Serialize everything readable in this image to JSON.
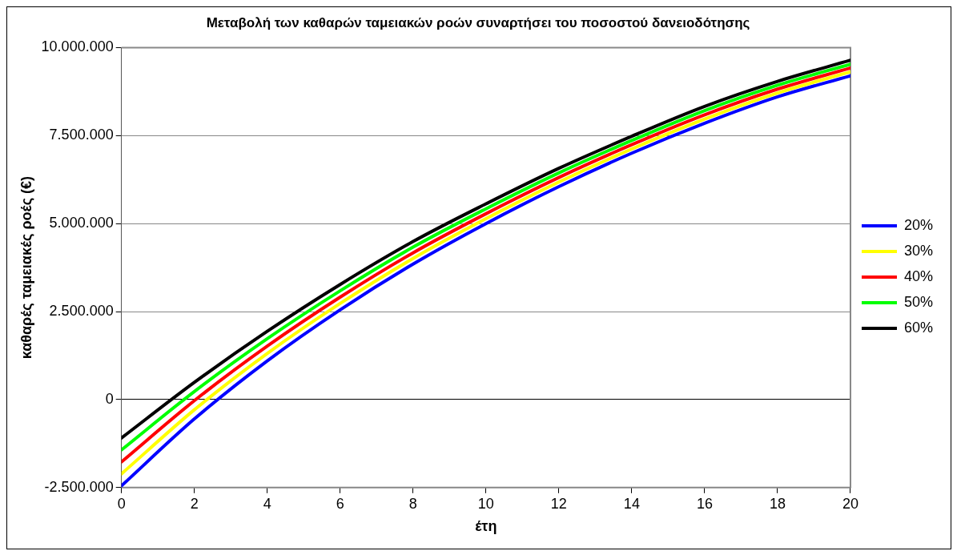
{
  "chart_data": {
    "type": "line",
    "title": "Μεταβολή των καθαρών ταμειακών ροών συναρτήσει του ποσοστού δανειοδότησης",
    "xlabel": "έτη",
    "ylabel": "καθαρές ταμειακές ροές (€)",
    "x": [
      0,
      2,
      4,
      6,
      8,
      10,
      12,
      14,
      16,
      18,
      20
    ],
    "series": [
      {
        "name": "20%",
        "color": "#0000ff",
        "values": [
          -2450000,
          -550000,
          1100000,
          2550000,
          3850000,
          5000000,
          6050000,
          7000000,
          7850000,
          8600000,
          9200000
        ]
      },
      {
        "name": "30%",
        "color": "#ffff00",
        "values": [
          -2110000,
          -290000,
          1310000,
          2730000,
          4010000,
          5140000,
          6180000,
          7120000,
          7970000,
          8710000,
          9310000
        ]
      },
      {
        "name": "40%",
        "color": "#ff0000",
        "values": [
          -1770000,
          -30000,
          1520000,
          2910000,
          4170000,
          5280000,
          6310000,
          7240000,
          8090000,
          8820000,
          9420000
        ]
      },
      {
        "name": "50%",
        "color": "#00ff00",
        "values": [
          -1430000,
          230000,
          1730000,
          3090000,
          4330000,
          5420000,
          6440000,
          7360000,
          8210000,
          8930000,
          9530000
        ]
      },
      {
        "name": "60%",
        "color": "#000000",
        "values": [
          -1090000,
          490000,
          1940000,
          3270000,
          4490000,
          5560000,
          6570000,
          7480000,
          8330000,
          9040000,
          9640000
        ]
      }
    ],
    "xlim": [
      0,
      20
    ],
    "xticks": [
      0,
      2,
      4,
      6,
      8,
      10,
      12,
      14,
      16,
      18,
      20
    ],
    "ylim": [
      -2500000,
      10000000
    ],
    "yticks": [
      {
        "value": -2500000,
        "label": "-2.500.000"
      },
      {
        "value": 0,
        "label": "0"
      },
      {
        "value": 2500000,
        "label": "2.500.000"
      },
      {
        "value": 5000000,
        "label": "5.000.000"
      },
      {
        "value": 7500000,
        "label": "7.500.000"
      },
      {
        "value": 10000000,
        "label": "10.000.000"
      }
    ],
    "grid": "y",
    "legend": "right",
    "marker": "none",
    "line_style": "solid"
  }
}
